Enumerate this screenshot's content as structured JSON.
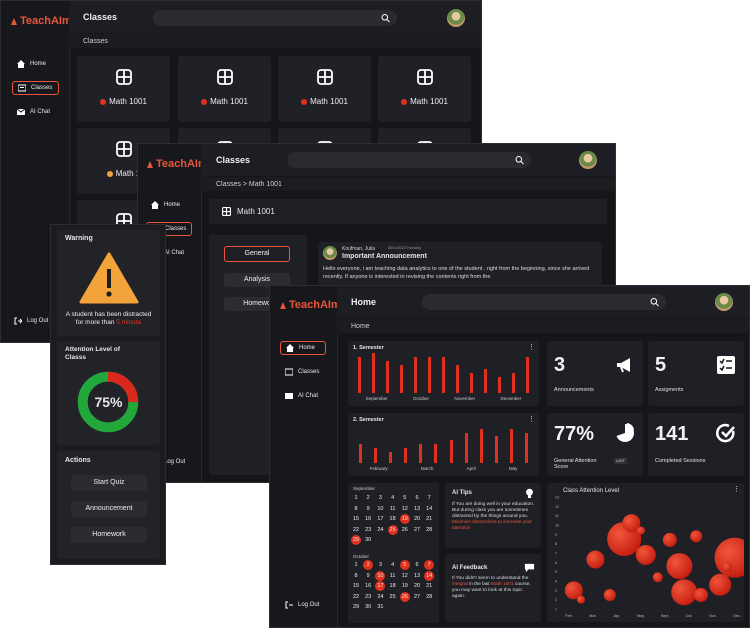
{
  "brand": "TeachAIm",
  "colors": {
    "accent": "#e8563a",
    "danger": "#e0301e",
    "success": "#22a83a",
    "bg": "#15161a"
  },
  "nav": {
    "home": "Home",
    "classes": "Classes",
    "ai_chat": "AI Chat",
    "logout": "Log Out"
  },
  "win1": {
    "title": "Classes",
    "breadcrumb": "Classes",
    "tiles": [
      "Math 1001",
      "Math 1001",
      "Math 1001",
      "Math 1001",
      "Math 1"
    ]
  },
  "warning": {
    "title": "Warning",
    "message_prefix": "A student has been distracted for more than",
    "message_highlight": "5 minute",
    "attention_title": "Attention Level of Classs",
    "attention_value": "75%",
    "attention_fraction": 0.75,
    "actions_title": "Actions",
    "actions": [
      "Start Quiz",
      "Announcement",
      "Homework"
    ]
  },
  "win2": {
    "title": "Classes",
    "breadcrumb": "Classes > Math 1001",
    "class_name": "Math 1001",
    "tabs": [
      "General",
      "Analysis",
      "Homewo"
    ],
    "post_author": "Koufman, Julia",
    "post_date": "08/14/2023 Thursday",
    "post_title": "Important Announcement",
    "post_body": "Hello everyone, i am teaching data analytics to one of the student , right from the beginning, since she arrived recently. If anyone is interested in revising the contents right from the"
  },
  "win3": {
    "title": "Home",
    "breadcrumb": "Home",
    "sem1": {
      "title": "1. Semester",
      "months": [
        "September",
        "October",
        "November",
        "December"
      ],
      "values": [
        9,
        10,
        8,
        7,
        9,
        9,
        9,
        7,
        5,
        6,
        4,
        5,
        9
      ]
    },
    "sem2": {
      "title": "2. Semester",
      "months": [
        "February",
        "March",
        "April",
        "May"
      ],
      "values": [
        5,
        4,
        3,
        4,
        5,
        5,
        6,
        8,
        9,
        7,
        9,
        8
      ]
    },
    "stats": [
      {
        "value": "3",
        "label": "Announcements",
        "icon": "megaphone-icon"
      },
      {
        "value": "5",
        "label": "Assigments",
        "icon": "checklist-icon"
      },
      {
        "value": "77%",
        "label": "General Attention Score",
        "icon": "pie-icon"
      },
      {
        "value": "141",
        "label": "Completed Sessions",
        "icon": "check-circle-icon"
      }
    ],
    "score_toggle": "LAST",
    "calendar": {
      "sep_label": "September",
      "sep_days": [
        "1",
        "2",
        "3",
        "4",
        "5",
        "6",
        "7",
        "8",
        "9",
        "10",
        "11",
        "12",
        "13",
        "14",
        "15",
        "16",
        "17",
        "18",
        "19",
        "20",
        "21",
        "22",
        "23",
        "24",
        "25",
        "26",
        "27",
        "28",
        "29",
        "30"
      ],
      "sep_highlight": [
        19,
        25,
        29
      ],
      "oct_label": "October",
      "oct_days": [
        "1",
        "2",
        "3",
        "4",
        "5",
        "6",
        "7",
        "8",
        "9",
        "10",
        "11",
        "12",
        "13",
        "14",
        "15",
        "16",
        "17",
        "18",
        "19",
        "20",
        "21",
        "22",
        "23",
        "24",
        "25",
        "26",
        "27",
        "28",
        "29",
        "30",
        "31"
      ],
      "oct_highlight": [
        2,
        5,
        7,
        10,
        14,
        17,
        26
      ]
    },
    "ai_tips_title": "AI Tips",
    "ai_tips_text": "If You are doing well in your education. But during class you are sometimes distracted by the things around you.",
    "ai_tips_highlight": "Minimize distractions to increase your attention",
    "ai_feedback_title": "AI Feedback",
    "ai_feedback_text1": "If You didn't seem to understand the",
    "ai_feedback_hl1": "integral",
    "ai_feedback_text2": "in the last",
    "ai_feedback_hl2": "Math 1001",
    "ai_feedback_text3": "course, you may want to look at this topic again.",
    "bubble_title": "Class Attention Level",
    "bubble_months": [
      "Feb.",
      "Mar.",
      "Apr.",
      "May.",
      "Sept.",
      "Oct.",
      "Nov.",
      "Dec."
    ],
    "bubble_yticks": [
      "13",
      "12",
      "11",
      "10",
      "9",
      "8",
      "7",
      "6",
      "5",
      "4",
      "3",
      "2",
      "1"
    ],
    "bubbles": [
      {
        "x": 0.2,
        "y": 2,
        "r": 9
      },
      {
        "x": 0.5,
        "y": 1,
        "r": 4
      },
      {
        "x": 1.1,
        "y": 5.3,
        "r": 9
      },
      {
        "x": 1.7,
        "y": 1.5,
        "r": 6
      },
      {
        "x": 2.3,
        "y": 7.5,
        "r": 17
      },
      {
        "x": 2.6,
        "y": 9.2,
        "r": 9
      },
      {
        "x": 3.0,
        "y": 8.4,
        "r": 4
      },
      {
        "x": 3.2,
        "y": 5.8,
        "r": 10
      },
      {
        "x": 3.7,
        "y": 3.4,
        "r": 5
      },
      {
        "x": 4.2,
        "y": 7.4,
        "r": 7
      },
      {
        "x": 4.6,
        "y": 4.6,
        "r": 13
      },
      {
        "x": 4.8,
        "y": 1.8,
        "r": 13
      },
      {
        "x": 5.5,
        "y": 1.5,
        "r": 7
      },
      {
        "x": 5.3,
        "y": 7.8,
        "r": 6
      },
      {
        "x": 6.3,
        "y": 2.6,
        "r": 11
      },
      {
        "x": 6.9,
        "y": 5.5,
        "r": 20
      },
      {
        "x": 6.6,
        "y": 4.5,
        "r": 5
      }
    ]
  }
}
